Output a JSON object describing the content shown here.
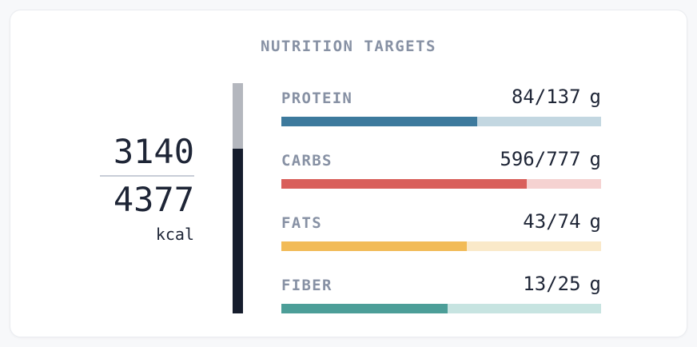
{
  "card": {
    "title": "NUTRITION TARGETS"
  },
  "calories": {
    "current": "3140",
    "target": "4377",
    "unit": "kcal",
    "percent": 71.7,
    "fill_color": "#161d2d",
    "remaining_color": "#b4b7be"
  },
  "nutrients": [
    {
      "name": "PROTEIN",
      "value": "84/137",
      "unit": "g",
      "percent": 61.3,
      "fill_color": "#3d7a9d",
      "track_color": "#c3d7e1"
    },
    {
      "name": "CARBS",
      "value": "596/777",
      "unit": "g",
      "percent": 76.7,
      "fill_color": "#d95f5b",
      "track_color": "#f5d2d1"
    },
    {
      "name": "FATS",
      "value": "43/74",
      "unit": "g",
      "percent": 58.1,
      "fill_color": "#f2bb57",
      "track_color": "#fae9c9"
    },
    {
      "name": "FIBER",
      "value": "13/25",
      "unit": "g",
      "percent": 52.0,
      "fill_color": "#4c9e98",
      "track_color": "#c7e4e1"
    }
  ],
  "colors": {
    "page_bg": "#f7f8fa",
    "card_bg": "#ffffff",
    "card_border": "#eaecf0",
    "muted_text": "#8791a4",
    "dark_text": "#1e2536",
    "divider": "#c8cdd7"
  }
}
